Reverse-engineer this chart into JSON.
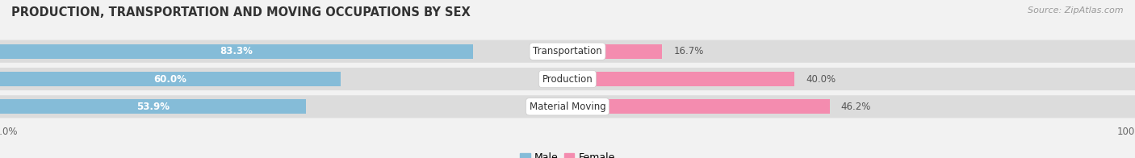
{
  "title": "PRODUCTION, TRANSPORTATION AND MOVING OCCUPATIONS BY SEX",
  "source": "Source: ZipAtlas.com",
  "categories": [
    "Transportation",
    "Production",
    "Material Moving"
  ],
  "male_pct": [
    83.3,
    60.0,
    53.9
  ],
  "female_pct": [
    16.7,
    40.0,
    46.2
  ],
  "male_color_top": "#6baed6",
  "male_color_bottom": "#9ecae1",
  "female_color_top": "#f768a1",
  "female_color_bottom": "#fbb4c9",
  "male_color": "#85bcd8",
  "female_color": "#f48caf",
  "bar_height": 0.52,
  "bg_color": "#f2f2f2",
  "row_bg_color": "#e0e0e0",
  "title_fontsize": 10.5,
  "label_fontsize": 8.5,
  "pct_fontsize": 8.5,
  "tick_fontsize": 8.5,
  "legend_fontsize": 9,
  "source_fontsize": 8
}
